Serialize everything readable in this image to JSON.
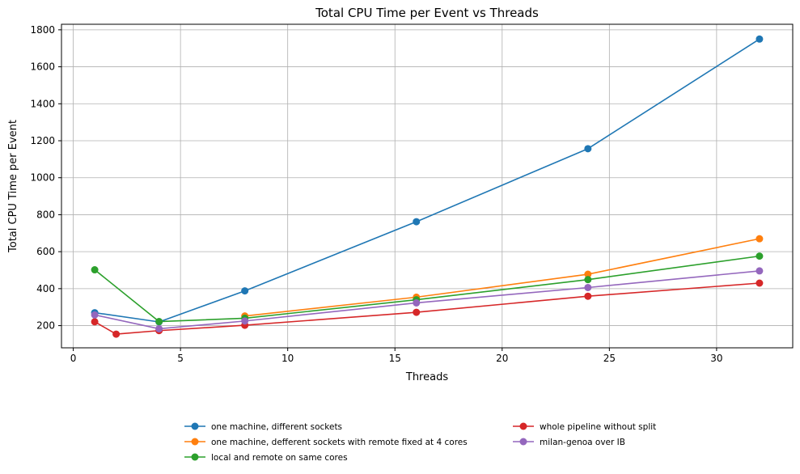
{
  "chart_data": {
    "type": "line",
    "title": "Total CPU Time per Event vs Threads",
    "xlabel": "Threads",
    "ylabel": "Total CPU Time per Event",
    "xlim": [
      -0.55,
      33.55
    ],
    "ylim": [
      80,
      1830
    ],
    "xticks": [
      0,
      5,
      10,
      15,
      20,
      25,
      30
    ],
    "yticks": [
      200,
      400,
      600,
      800,
      1000,
      1200,
      1400,
      1600,
      1800
    ],
    "grid": true,
    "legend_position": "bottom-center",
    "series": [
      {
        "name": "one machine, different sockets",
        "color": "#1f77b4",
        "x": [
          1,
          4,
          8,
          16,
          24,
          32
        ],
        "y": [
          270,
          220,
          388,
          762,
          1157,
          1750
        ]
      },
      {
        "name": "one machine, defferent sockets with remote fixed at 4 cores",
        "color": "#ff7f0e",
        "x": [
          8,
          16,
          24,
          32
        ],
        "y": [
          252,
          354,
          478,
          670
        ]
      },
      {
        "name": "local and remote on same cores",
        "color": "#2ca02c",
        "x": [
          1,
          4,
          8,
          16,
          24,
          32
        ],
        "y": [
          502,
          222,
          240,
          340,
          449,
          576
        ]
      },
      {
        "name": "whole pipeline without split",
        "color": "#d62728",
        "x": [
          1,
          2,
          4,
          8,
          16,
          24,
          32
        ],
        "y": [
          221,
          154,
          173,
          202,
          272,
          359,
          430
        ]
      },
      {
        "name": "milan-genoa over IB",
        "color": "#9467bd",
        "x": [
          1,
          4,
          8,
          16,
          24,
          32
        ],
        "y": [
          258,
          183,
          225,
          323,
          406,
          496
        ]
      }
    ]
  }
}
